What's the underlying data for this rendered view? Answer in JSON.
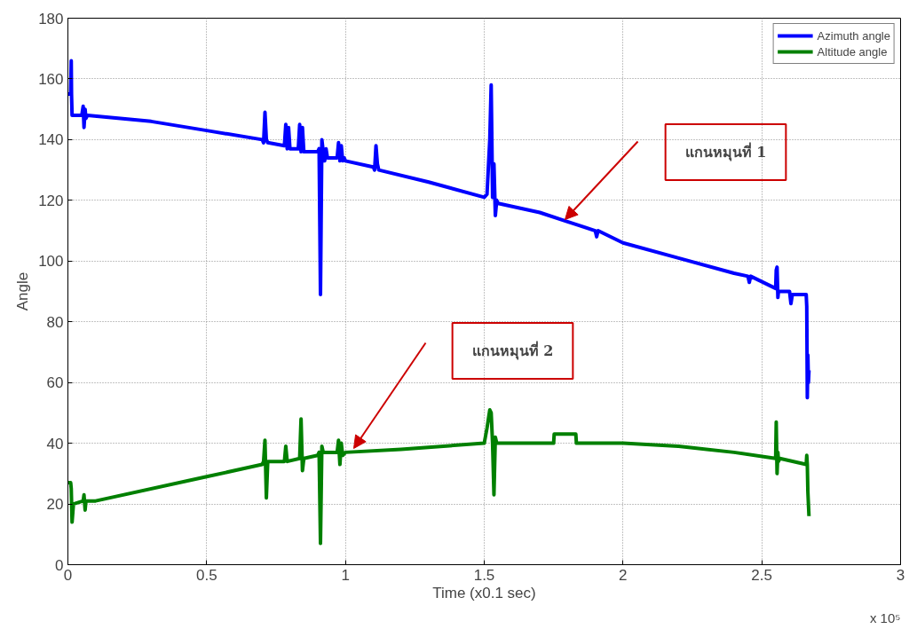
{
  "chart_data": {
    "type": "line",
    "xlabel": "Time (x0.1 sec)",
    "ylabel": "Angle",
    "xlim": [
      0,
      3
    ],
    "ylim": [
      0,
      180
    ],
    "xticks": [
      0,
      0.5,
      1,
      1.5,
      2,
      2.5,
      3
    ],
    "yticks": [
      0,
      20,
      40,
      60,
      80,
      100,
      120,
      140,
      160,
      180
    ],
    "grid": true,
    "legend": "top right",
    "line_style": "solid",
    "marker": "none",
    "series": [
      {
        "name": "Azimuth angle",
        "color": "#0000ff",
        "x": [
          0,
          0.01,
          0.012,
          0.013,
          0.015,
          0.05,
          0.055,
          0.058,
          0.062,
          0.065,
          0.07,
          0.3,
          0.5,
          0.7,
          0.705,
          0.71,
          0.715,
          0.72,
          0.78,
          0.785,
          0.79,
          0.795,
          0.8,
          0.83,
          0.835,
          0.84,
          0.845,
          0.85,
          0.9,
          0.905,
          0.91,
          0.915,
          0.92,
          0.925,
          0.93,
          0.935,
          0.97,
          0.975,
          0.98,
          0.985,
          0.99,
          0.995,
          1.0,
          1.1,
          1.105,
          1.11,
          1.115,
          1.12,
          1.3,
          1.5,
          1.51,
          1.52,
          1.525,
          1.53,
          1.535,
          1.54,
          1.545,
          1.55,
          1.7,
          1.8,
          1.9,
          1.905,
          1.91,
          2.0,
          2.2,
          2.4,
          2.45,
          2.455,
          2.46,
          2.55,
          2.552,
          2.555,
          2.558,
          2.56,
          2.6,
          2.605,
          2.61,
          2.66,
          2.662,
          2.664,
          2.666,
          2.668,
          2.67
        ],
        "values": [
          155,
          155,
          166,
          155,
          148,
          148,
          151,
          144,
          150,
          147,
          148,
          146,
          143,
          140,
          139,
          149,
          140,
          139,
          138,
          145,
          137,
          144,
          137,
          137,
          145,
          136,
          144,
          136,
          136,
          137,
          89,
          140,
          136,
          133,
          137,
          134,
          134,
          139,
          133,
          138,
          133,
          134,
          133,
          131,
          130,
          138,
          132,
          130,
          126,
          121,
          122,
          140,
          158,
          121,
          132,
          115,
          120,
          119,
          116,
          113,
          110,
          108,
          110,
          106,
          101,
          96,
          95,
          93,
          95,
          91,
          97,
          98,
          88,
          90,
          90,
          86,
          89,
          89,
          85,
          55,
          69,
          60,
          64
        ]
      },
      {
        "name": "Altitude angle",
        "color": "#008000",
        "x": [
          0,
          0.01,
          0.012,
          0.015,
          0.02,
          0.055,
          0.058,
          0.062,
          0.065,
          0.1,
          0.5,
          0.7,
          0.705,
          0.71,
          0.715,
          0.72,
          0.78,
          0.785,
          0.79,
          0.835,
          0.84,
          0.845,
          0.85,
          0.9,
          0.905,
          0.91,
          0.915,
          0.92,
          0.97,
          0.975,
          0.98,
          0.985,
          0.99,
          1.0,
          1.2,
          1.5,
          1.51,
          1.52,
          1.525,
          1.53,
          1.535,
          1.54,
          1.545,
          1.6,
          1.75,
          1.752,
          1.83,
          1.832,
          2.0,
          2.2,
          2.4,
          2.55,
          2.552,
          2.555,
          2.558,
          2.56,
          2.565,
          2.66,
          2.662,
          2.664,
          2.666,
          2.668,
          2.67
        ],
        "values": [
          27,
          27,
          25,
          14,
          20,
          21,
          23,
          18,
          21,
          21,
          29,
          33,
          34,
          41,
          22,
          34,
          34,
          39,
          34,
          35,
          48,
          31,
          35,
          36,
          37,
          7,
          39,
          37,
          37,
          41,
          33,
          40,
          36,
          37,
          38,
          40,
          45,
          51,
          50,
          40,
          23,
          42,
          40,
          40,
          40,
          43,
          43,
          40,
          40,
          39,
          37,
          35,
          47,
          30,
          37,
          34,
          35,
          33,
          36,
          33,
          24,
          20,
          16
        ]
      }
    ],
    "annotations": [
      "แกนหมุนที่ 1",
      "แกนหมุนที่ 2",
      "x 10⁵"
    ]
  }
}
